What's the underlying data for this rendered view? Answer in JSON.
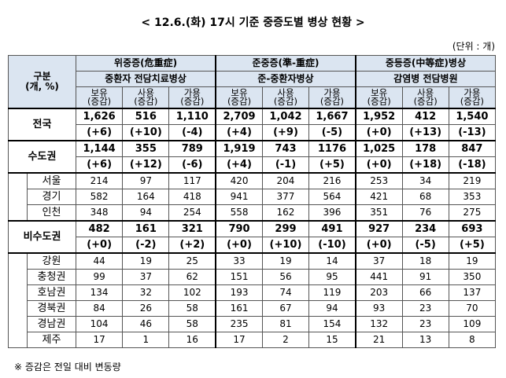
{
  "title": "< 12.6.(화) 17시 기준 중증도별 병상 현황 >",
  "unit": "(단위 : 개)",
  "header": {
    "corner": [
      "구분",
      "(개, %)"
    ],
    "groups": [
      {
        "name": "위중증(危重症)",
        "sub": "중환자 전담치료병상"
      },
      {
        "name": "준중증(準-重症)",
        "sub": "준-중환자병상"
      },
      {
        "name": "중등증(中等症)병상",
        "sub": "감염병 전담병원"
      }
    ],
    "columns": [
      [
        "보유",
        "(증감)"
      ],
      [
        "사용",
        "(증감)"
      ],
      [
        "가용",
        "(증감)"
      ]
    ]
  },
  "rows": [
    {
      "label": "전국",
      "values": [
        "1,626",
        "516",
        "1,110",
        "2,709",
        "1,042",
        "1,667",
        "1,952",
        "412",
        "1,540"
      ],
      "changes": [
        "(+6)",
        "(+10)",
        "(-4)",
        "(+4)",
        "(+9)",
        "(-5)",
        "(+0)",
        "(+13)",
        "(-13)"
      ]
    },
    {
      "label": "수도권",
      "values": [
        "1,144",
        "355",
        "789",
        "1,919",
        "743",
        "1176",
        "1,025",
        "178",
        "847"
      ],
      "changes": [
        "(+6)",
        "(+12)",
        "(-6)",
        "(+4)",
        "(-1)",
        "(+5)",
        "(+0)",
        "(+18)",
        "(-18)"
      ],
      "subrows": [
        {
          "label": "서울",
          "values": [
            "214",
            "97",
            "117",
            "420",
            "204",
            "216",
            "253",
            "34",
            "219"
          ]
        },
        {
          "label": "경기",
          "values": [
            "582",
            "164",
            "418",
            "941",
            "377",
            "564",
            "421",
            "68",
            "353"
          ]
        },
        {
          "label": "인천",
          "values": [
            "348",
            "94",
            "254",
            "558",
            "162",
            "396",
            "351",
            "76",
            "275"
          ]
        }
      ]
    },
    {
      "label": "비수도권",
      "values": [
        "482",
        "161",
        "321",
        "790",
        "299",
        "491",
        "927",
        "234",
        "693"
      ],
      "changes": [
        "(+0)",
        "(-2)",
        "(+2)",
        "(+0)",
        "(+10)",
        "(-10)",
        "(+0)",
        "(-5)",
        "(+5)"
      ],
      "subrows": [
        {
          "label": "강원",
          "values": [
            "44",
            "19",
            "25",
            "33",
            "19",
            "14",
            "37",
            "18",
            "19"
          ]
        },
        {
          "label": "충청권",
          "values": [
            "99",
            "37",
            "62",
            "151",
            "56",
            "95",
            "441",
            "91",
            "350"
          ]
        },
        {
          "label": "호남권",
          "values": [
            "134",
            "32",
            "102",
            "193",
            "74",
            "119",
            "203",
            "66",
            "137"
          ]
        },
        {
          "label": "경북권",
          "values": [
            "84",
            "26",
            "58",
            "161",
            "67",
            "94",
            "93",
            "23",
            "70"
          ]
        },
        {
          "label": "경남권",
          "values": [
            "104",
            "46",
            "58",
            "235",
            "81",
            "154",
            "132",
            "23",
            "109"
          ]
        },
        {
          "label": "제주",
          "values": [
            "17",
            "1",
            "16",
            "17",
            "2",
            "15",
            "21",
            "13",
            "8"
          ]
        }
      ]
    }
  ],
  "note": "※ 증감은 전일 대비 변동량"
}
